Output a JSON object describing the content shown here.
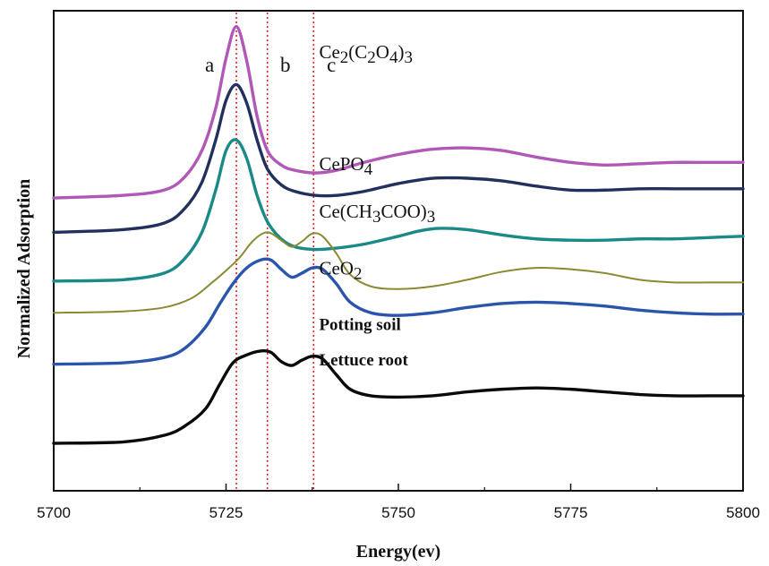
{
  "chart_data": {
    "type": "line",
    "title": "",
    "xlabel": "Energy(ev)",
    "ylabel": "Normalized Adsorption",
    "xlim": [
      5700,
      5800
    ],
    "x_ticks": [
      "5700",
      "5725",
      "5750",
      "5775",
      "5800"
    ],
    "y_ticks": [],
    "grid": false,
    "legend": "none",
    "reference_lines": [
      {
        "label": "a",
        "x": 5726.5,
        "color": "#e02020",
        "style": "dotted"
      },
      {
        "label": "b",
        "x": 5731,
        "color": "#e02020",
        "style": "dotted"
      },
      {
        "label": "c",
        "x": 5737.7,
        "color": "#e02020",
        "style": "dotted"
      }
    ],
    "series": [
      {
        "name": "Ce2(C2O4)3",
        "color": "#b157b7",
        "thin": false,
        "label_weight": "normal",
        "label_x": 5738.5,
        "label_y": 14.6,
        "x": [
          5700,
          5710,
          5716,
          5719,
          5721.5,
          5723.5,
          5725,
          5726.5,
          5728,
          5729.5,
          5731,
          5733,
          5735,
          5738,
          5741,
          5745,
          5750,
          5755,
          5760,
          5765,
          5770,
          5775,
          5780,
          5785,
          5790,
          5795,
          5800
        ],
        "y": [
          9.3,
          9.4,
          9.6,
          10.1,
          11.1,
          12.7,
          14.6,
          15.8,
          14.5,
          12.4,
          11.1,
          10.55,
          10.35,
          10.25,
          10.35,
          10.65,
          10.95,
          11.15,
          11.2,
          11.1,
          10.85,
          10.65,
          10.55,
          10.6,
          10.65,
          10.65,
          10.65
        ]
      },
      {
        "name": "CePO4",
        "color": "#22305e",
        "thin": false,
        "label_weight": "normal",
        "label_x": 5738.5,
        "label_y": 10.35,
        "x": [
          5700,
          5710,
          5716,
          5719,
          5721.5,
          5723.5,
          5725,
          5726.5,
          5728,
          5729.5,
          5731,
          5733,
          5735,
          5738,
          5741,
          5745,
          5750,
          5755,
          5760,
          5765,
          5770,
          5775,
          5780,
          5785,
          5790,
          5795,
          5800
        ],
        "y": [
          8.0,
          8.1,
          8.35,
          8.9,
          9.9,
          11.5,
          13.0,
          13.6,
          12.9,
          11.5,
          10.4,
          9.8,
          9.55,
          9.4,
          9.4,
          9.55,
          9.85,
          10.05,
          10.05,
          9.95,
          9.75,
          9.6,
          9.6,
          9.65,
          9.65,
          9.65,
          9.65
        ]
      },
      {
        "name": "Ce(CH3COO)3",
        "color": "#1a8a88",
        "thin": false,
        "label_weight": "normal",
        "label_x": 5738.5,
        "label_y": 8.55,
        "x": [
          5700,
          5710,
          5716,
          5719,
          5721.5,
          5723.5,
          5725,
          5726.5,
          5728,
          5729.5,
          5731,
          5733,
          5735,
          5738,
          5741,
          5745,
          5750,
          5753,
          5756,
          5760,
          5765,
          5770,
          5775,
          5780,
          5785,
          5790,
          5795,
          5800
        ],
        "y": [
          6.15,
          6.2,
          6.45,
          7.0,
          8.0,
          9.6,
          11.1,
          11.5,
          10.8,
          9.4,
          8.4,
          7.75,
          7.45,
          7.35,
          7.4,
          7.55,
          7.85,
          8.05,
          8.15,
          8.1,
          7.9,
          7.75,
          7.7,
          7.7,
          7.75,
          7.75,
          7.8,
          7.85
        ]
      },
      {
        "name": "CeO2",
        "color": "#8a8a32",
        "thin": true,
        "label_weight": "normal",
        "label_x": 5738.5,
        "label_y": 6.4,
        "x": [
          5700,
          5710,
          5716,
          5720,
          5723,
          5725,
          5727,
          5729,
          5731,
          5733,
          5734.5,
          5736,
          5737.5,
          5739,
          5741,
          5743,
          5746,
          5750,
          5755,
          5760,
          5765,
          5770,
          5775,
          5780,
          5785,
          5790,
          5795,
          5800
        ],
        "y": [
          4.95,
          5.0,
          5.15,
          5.5,
          6.1,
          6.55,
          7.05,
          7.7,
          8.0,
          7.7,
          7.45,
          7.65,
          7.95,
          7.85,
          7.2,
          6.4,
          5.95,
          5.85,
          5.95,
          6.2,
          6.5,
          6.65,
          6.6,
          6.45,
          6.2,
          6.1,
          6.1,
          6.1
        ]
      },
      {
        "name": "Potting soil",
        "color": "#2b54ad",
        "thin": false,
        "label_weight": "bold",
        "label_x": 5738.5,
        "label_y": 4.3,
        "x": [
          5700,
          5710,
          5716,
          5719,
          5722,
          5724,
          5726,
          5728,
          5730,
          5731.5,
          5733,
          5734.5,
          5736,
          5737.5,
          5739,
          5741,
          5743,
          5746,
          5750,
          5755,
          5760,
          5765,
          5770,
          5775,
          5780,
          5785,
          5790,
          5795,
          5800
        ],
        "y": [
          3.0,
          3.05,
          3.25,
          3.6,
          4.4,
          5.25,
          6.05,
          6.65,
          6.95,
          6.95,
          6.6,
          6.3,
          6.45,
          6.65,
          6.6,
          6.05,
          5.35,
          4.95,
          4.85,
          4.95,
          5.15,
          5.3,
          5.35,
          5.3,
          5.2,
          5.05,
          4.95,
          4.9,
          4.9
        ]
      },
      {
        "name": "Lettuce root",
        "color": "#0a0a0a",
        "thin": false,
        "label_weight": "bold",
        "label_x": 5738.5,
        "label_y": 2.95,
        "x": [
          5700,
          5710,
          5716,
          5719,
          5722,
          5724,
          5726,
          5728,
          5730,
          5731.5,
          5733,
          5734.5,
          5736,
          5737.5,
          5739,
          5741,
          5743,
          5746,
          5750,
          5755,
          5760,
          5765,
          5770,
          5775,
          5780,
          5785,
          5790,
          5795,
          5800
        ],
        "y": [
          0.0,
          0.05,
          0.3,
          0.65,
          1.3,
          2.2,
          3.05,
          3.35,
          3.5,
          3.45,
          3.1,
          2.95,
          3.15,
          3.3,
          3.2,
          2.6,
          2.05,
          1.8,
          1.75,
          1.8,
          1.95,
          2.05,
          2.1,
          2.05,
          1.95,
          1.85,
          1.8,
          1.8,
          1.8
        ]
      }
    ]
  }
}
